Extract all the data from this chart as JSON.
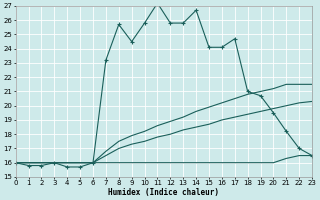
{
  "xlabel": "Humidex (Indice chaleur)",
  "xlim": [
    0,
    23
  ],
  "ylim": [
    15,
    27
  ],
  "xticks": [
    0,
    1,
    2,
    3,
    4,
    5,
    6,
    7,
    8,
    9,
    10,
    11,
    12,
    13,
    14,
    15,
    16,
    17,
    18,
    19,
    20,
    21,
    22,
    23
  ],
  "yticks": [
    15,
    16,
    17,
    18,
    19,
    20,
    21,
    22,
    23,
    24,
    25,
    26,
    27
  ],
  "bg_color": "#ceeaea",
  "line_color": "#1a5f5a",
  "grid_color": "#ffffff",
  "main_x": [
    0,
    1,
    2,
    3,
    4,
    5,
    6,
    7,
    8,
    9,
    10,
    11,
    12,
    13,
    14,
    15,
    16,
    17,
    18,
    19,
    20,
    21,
    22,
    23
  ],
  "main_y": [
    16.0,
    15.8,
    15.8,
    16.0,
    15.7,
    15.7,
    16.0,
    23.2,
    25.7,
    24.5,
    25.8,
    27.2,
    25.8,
    25.8,
    26.7,
    24.1,
    24.1,
    24.7,
    21.0,
    20.7,
    19.5,
    18.2,
    17.0,
    16.5
  ],
  "line1_x": [
    0,
    5,
    6,
    7,
    8,
    9,
    10,
    11,
    12,
    13,
    14,
    15,
    16,
    17,
    18,
    19,
    20,
    21,
    22,
    23
  ],
  "line1_y": [
    16.0,
    16.0,
    16.0,
    16.0,
    16.0,
    16.0,
    16.0,
    16.0,
    16.0,
    16.0,
    16.0,
    16.0,
    16.0,
    16.0,
    16.0,
    16.0,
    16.0,
    16.3,
    16.5,
    16.5
  ],
  "line2_x": [
    0,
    5,
    6,
    7,
    8,
    9,
    10,
    11,
    12,
    13,
    14,
    15,
    16,
    17,
    18,
    19,
    20,
    21,
    22,
    23
  ],
  "line2_y": [
    16.0,
    16.0,
    16.0,
    16.5,
    17.0,
    17.3,
    17.5,
    17.8,
    18.0,
    18.3,
    18.5,
    18.7,
    19.0,
    19.2,
    19.4,
    19.6,
    19.8,
    20.0,
    20.2,
    20.3
  ],
  "line3_x": [
    0,
    5,
    6,
    7,
    8,
    9,
    10,
    11,
    12,
    13,
    14,
    15,
    16,
    17,
    18,
    19,
    20,
    21,
    22,
    23
  ],
  "line3_y": [
    16.0,
    16.0,
    16.0,
    16.8,
    17.5,
    17.9,
    18.2,
    18.6,
    18.9,
    19.2,
    19.6,
    19.9,
    20.2,
    20.5,
    20.8,
    21.0,
    21.2,
    21.5,
    21.5,
    21.5
  ]
}
